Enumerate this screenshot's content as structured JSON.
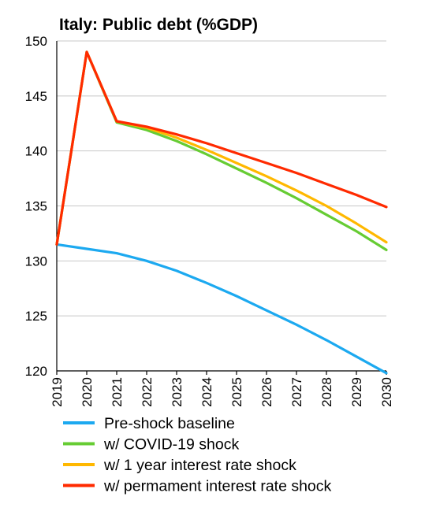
{
  "chart_data": {
    "type": "line",
    "title": "Italy: Public debt (%GDP)",
    "xlabel": "",
    "ylabel": "",
    "x": [
      "2019",
      "2020",
      "2021",
      "2022",
      "2023",
      "2024",
      "2025",
      "2026",
      "2027",
      "2028",
      "2029",
      "2030"
    ],
    "ylim": [
      120,
      150
    ],
    "yticks": [
      120,
      125,
      130,
      135,
      140,
      145,
      150
    ],
    "grid": true,
    "legend_position": "bottom",
    "series": [
      {
        "name": "Pre-shock baseline",
        "color": "#1ca9f0",
        "values": [
          131.5,
          131.1,
          130.7,
          130.0,
          129.1,
          128.0,
          126.8,
          125.5,
          124.2,
          122.8,
          121.3,
          119.8
        ]
      },
      {
        "name": "w/ COVID-19 shock",
        "color": "#66cc33",
        "values": [
          131.5,
          149.0,
          142.6,
          141.9,
          140.9,
          139.7,
          138.4,
          137.1,
          135.7,
          134.2,
          132.7,
          131.0
        ]
      },
      {
        "name": "w/ 1 year interest rate shock",
        "color": "#ffb800",
        "values": [
          131.5,
          149.0,
          142.7,
          142.1,
          141.2,
          140.1,
          138.9,
          137.7,
          136.4,
          135.0,
          133.4,
          131.7
        ]
      },
      {
        "name": "w/ permament interest rate shock",
        "color": "#ff2a00",
        "values": [
          131.5,
          149.0,
          142.7,
          142.2,
          141.5,
          140.7,
          139.8,
          138.9,
          138.0,
          137.0,
          136.0,
          134.9
        ]
      }
    ]
  }
}
